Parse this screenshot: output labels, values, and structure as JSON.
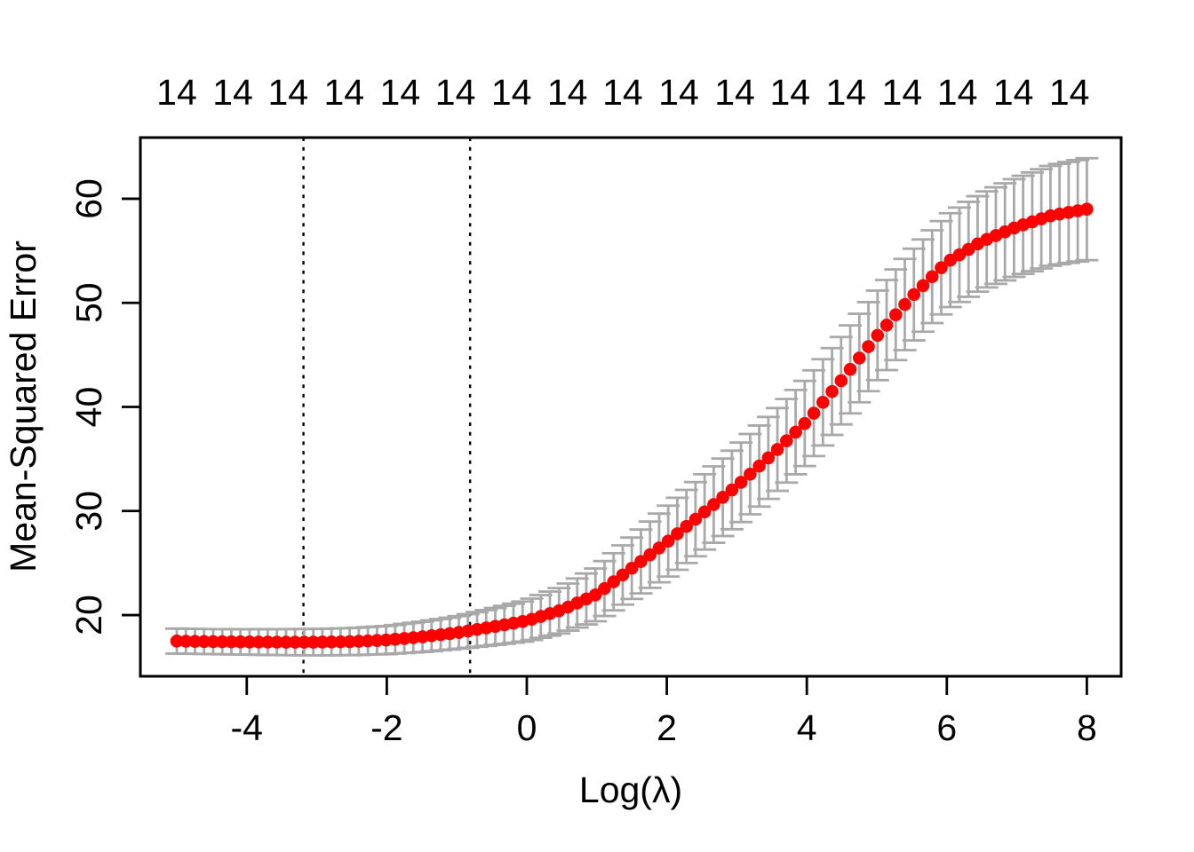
{
  "chart_data": {
    "type": "scatter",
    "title": "",
    "xlabel": "Log(λ)",
    "ylabel": "Mean-Squared Error",
    "grid": false,
    "legend": null,
    "x_axis": {
      "ticks": [
        -4,
        -2,
        0,
        2,
        4,
        6,
        8
      ],
      "range": [
        -5.52,
        8.49
      ]
    },
    "y_axis": {
      "ticks": [
        20,
        30,
        40,
        50,
        60
      ],
      "range": [
        14.12,
        65.88
      ]
    },
    "top_axis": {
      "tick_x": [
        -5.0,
        -4.2,
        -3.41,
        -2.61,
        -1.81,
        -1.02,
        -0.22,
        0.58,
        1.37,
        2.17,
        2.97,
        3.76,
        4.56,
        5.36,
        6.15,
        6.95,
        7.75
      ],
      "labels": [
        "14",
        "14",
        "14",
        "14",
        "14",
        "14",
        "14",
        "14",
        "14",
        "14",
        "14",
        "14",
        "14",
        "14",
        "14",
        "14",
        "14"
      ]
    },
    "vlines": [
      {
        "x": -3.19,
        "line_style": "dotted",
        "color": "#000000"
      },
      {
        "x": -0.81,
        "line_style": "dotted",
        "color": "#000000"
      }
    ],
    "series": [
      {
        "name": "mean-squared-error-with-error-bars",
        "marker": "filled-circle",
        "point_color": "#FF0000",
        "error_bar_color": "#A9A9A9",
        "x_start": -5.0,
        "x_step": 0.13,
        "n_points": 101,
        "anchors_x": [
          -5.0,
          -4.5,
          -4.0,
          -3.5,
          -3.0,
          -2.5,
          -2.0,
          -1.5,
          -1.0,
          -0.5,
          0.0,
          0.5,
          1.0,
          1.5,
          2.0,
          2.5,
          3.0,
          3.5,
          4.0,
          4.5,
          5.0,
          5.5,
          6.0,
          6.5,
          7.0,
          7.5,
          8.0
        ],
        "anchors_mean": [
          17.5,
          17.45,
          17.42,
          17.4,
          17.4,
          17.45,
          17.6,
          17.9,
          18.3,
          18.85,
          19.45,
          20.5,
          22.0,
          24.5,
          27.0,
          29.7,
          32.4,
          35.4,
          38.6,
          42.6,
          46.8,
          50.6,
          53.9,
          55.9,
          57.3,
          58.4,
          59.0
        ],
        "anchors_half_width": [
          1.2,
          1.2,
          1.22,
          1.25,
          1.27,
          1.3,
          1.35,
          1.45,
          1.55,
          1.75,
          1.95,
          2.2,
          2.55,
          2.95,
          3.4,
          3.6,
          3.8,
          3.95,
          4.1,
          4.2,
          4.3,
          4.4,
          4.5,
          4.6,
          4.7,
          4.8,
          4.9
        ]
      }
    ],
    "colors": {
      "points": "#FF0000",
      "error_bars": "#A9A9A9",
      "axes": "#000000",
      "background": "#FFFFFF"
    }
  }
}
